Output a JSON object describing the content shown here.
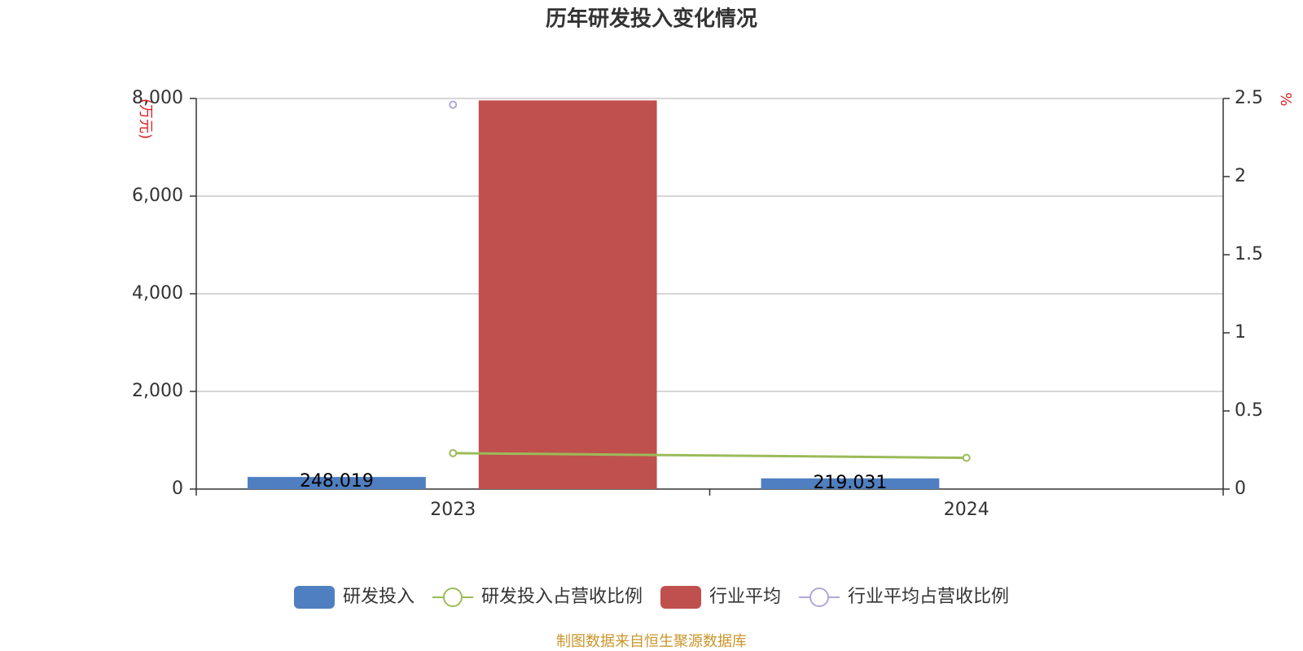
{
  "chart_data": {
    "type": "bar",
    "title": "历年研发投入变化情况",
    "y_label": "(万元)",
    "y2_label": "%",
    "source": "制图数据来自恒生聚源数据库",
    "categories": [
      "2023",
      "2024"
    ],
    "series": [
      {
        "name": "研发投入",
        "type": "bar",
        "color": "#4f7fc0",
        "values": [
          248.019,
          219.031
        ]
      },
      {
        "name": "研发投入占营收比例",
        "type": "line",
        "axis": "y2",
        "color": "#9bbb59",
        "values": [
          0.23,
          0.2
        ]
      },
      {
        "name": "行业平均",
        "type": "bar",
        "color": "#c0504d",
        "values": [
          7960,
          null
        ]
      },
      {
        "name": "行业平均占营收比例",
        "type": "line",
        "axis": "y2",
        "color": "#b3a6d9",
        "values": [
          2.46,
          null
        ]
      }
    ],
    "ylim": [
      0,
      8000
    ],
    "yticks": [
      0,
      {
        "value": 2000,
        "label": "2,000"
      },
      {
        "value": 4000,
        "label": "4,000"
      },
      {
        "value": 6000,
        "label": "6,000"
      },
      {
        "value": 8000,
        "label": "8,000"
      }
    ],
    "y2lim": [
      0,
      2.5
    ],
    "y2ticks": [
      0,
      0.5,
      1,
      1.5,
      2,
      2.5
    ],
    "grid": true,
    "legend": "bottom"
  }
}
